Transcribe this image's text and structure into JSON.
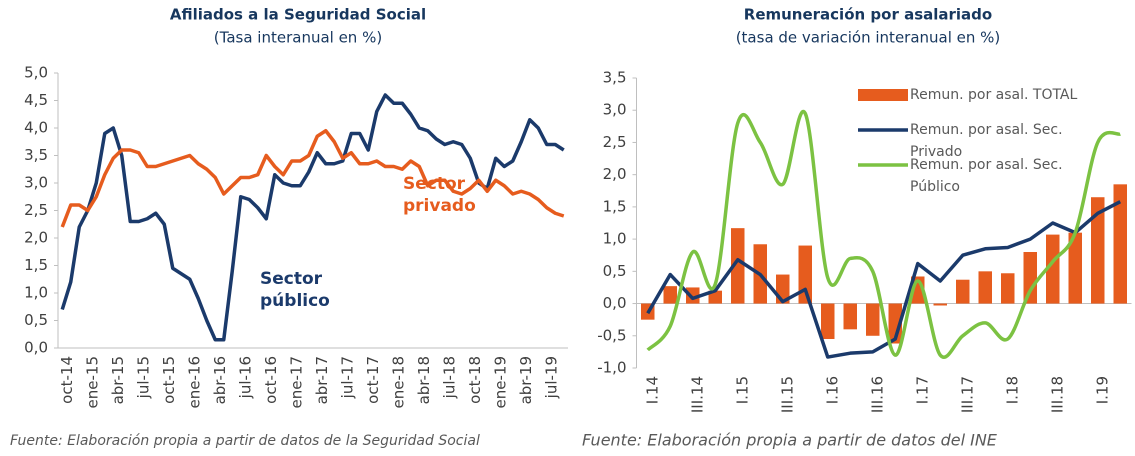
{
  "chart_data": [
    {
      "type": "line",
      "title": "Afiliados a la Seguridad Social",
      "subtitle": "(Tasa interanual en %)",
      "source": "Fuente: Elaboración propia a partir de datos de la Seguridad Social",
      "legend": false,
      "categories": [
        "oct-14",
        null,
        null,
        "ene-15",
        null,
        null,
        "abr-15",
        null,
        null,
        "jul-15",
        null,
        null,
        "oct-15",
        null,
        null,
        "ene-16",
        null,
        null,
        "abr-16",
        null,
        null,
        "jul-16",
        null,
        null,
        "oct-16",
        null,
        null,
        "ene-17",
        null,
        null,
        "abr-17",
        null,
        null,
        "jul-17",
        null,
        null,
        "oct-17",
        null,
        null,
        "ene-18",
        null,
        null,
        "abr-18",
        null,
        null,
        "jul-18",
        null,
        null,
        "oct-18",
        null,
        null,
        "ene-19",
        null,
        null,
        "abr-19",
        null,
        null,
        "jul-19",
        null,
        null
      ],
      "series": [
        {
          "name": "Sector público",
          "color": "#1b3a6b",
          "values": [
            0.7,
            1.2,
            2.2,
            2.5,
            3.0,
            3.9,
            4.0,
            3.5,
            2.3,
            2.3,
            2.35,
            2.45,
            2.25,
            1.45,
            1.35,
            1.25,
            0.9,
            0.5,
            0.15,
            0.15,
            1.4,
            2.75,
            2.7,
            2.55,
            2.35,
            3.15,
            3.0,
            2.95,
            2.95,
            3.2,
            3.55,
            3.35,
            3.35,
            3.4,
            3.9,
            3.9,
            3.6,
            4.3,
            4.6,
            4.45,
            4.45,
            4.25,
            4.0,
            3.95,
            3.8,
            3.7,
            3.75,
            3.7,
            3.45,
            3.0,
            2.9,
            3.45,
            3.3,
            3.4,
            3.75,
            4.15,
            4.0,
            3.7,
            3.7,
            3.6
          ]
        },
        {
          "name": "Sector privado",
          "color": "#e65c1e",
          "values": [
            2.2,
            2.6,
            2.6,
            2.5,
            2.75,
            3.15,
            3.45,
            3.6,
            3.6,
            3.55,
            3.3,
            3.3,
            3.35,
            3.4,
            3.45,
            3.5,
            3.35,
            3.25,
            3.1,
            2.8,
            2.95,
            3.1,
            3.1,
            3.15,
            3.5,
            3.3,
            3.15,
            3.4,
            3.4,
            3.5,
            3.85,
            3.95,
            3.75,
            3.45,
            3.55,
            3.35,
            3.35,
            3.4,
            3.3,
            3.3,
            3.25,
            3.4,
            3.3,
            2.95,
            3.05,
            3.05,
            2.85,
            2.8,
            2.9,
            3.05,
            2.85,
            3.05,
            2.95,
            2.8,
            2.85,
            2.8,
            2.7,
            2.55,
            2.45,
            2.4
          ]
        }
      ],
      "ylim": [
        0,
        5
      ],
      "yticks": [
        {
          "value": 0,
          "label": "0,0"
        },
        {
          "value": 0.5,
          "label": "0,5"
        },
        {
          "value": 1,
          "label": "1,0"
        },
        {
          "value": 1.5,
          "label": "1,5"
        },
        {
          "value": 2,
          "label": "2,0"
        },
        {
          "value": 2.5,
          "label": "2,5"
        },
        {
          "value": 3,
          "label": "3,0"
        },
        {
          "value": 3.5,
          "label": "3,5"
        },
        {
          "value": 4,
          "label": "4,0"
        },
        {
          "value": 4.5,
          "label": "4,5"
        },
        {
          "value": 5,
          "label": "5,0"
        }
      ]
    },
    {
      "type": "bar",
      "title": "Remuneración por asalariado",
      "subtitle": "(tasa de variación interanual en %)",
      "source": "Fuente:  Elaboración propia a partir de datos del INE",
      "legend": "upper right",
      "categories": [
        "I.14",
        null,
        "III.14",
        null,
        "I.15",
        null,
        "III.15",
        null,
        "I.16",
        null,
        "III.16",
        null,
        "I.17",
        null,
        "III.17",
        null,
        "I.18",
        null,
        "III.18",
        null,
        "I.19",
        null
      ],
      "series": [
        {
          "name": "Remun. por asal. TOTAL",
          "type": "bar",
          "color": "#e65c1e",
          "values": [
            -0.25,
            0.27,
            0.25,
            0.2,
            1.17,
            0.92,
            0.45,
            0.9,
            -0.55,
            -0.4,
            -0.5,
            -0.62,
            0.42,
            -0.03,
            0.37,
            0.5,
            0.47,
            0.8,
            1.07,
            1.1,
            1.65,
            1.85
          ]
        },
        {
          "name": "Remun. por asal. Sec. Privado",
          "type": "line",
          "color": "#1b3a6b",
          "values": [
            -0.15,
            0.45,
            0.08,
            0.2,
            0.68,
            0.45,
            0.03,
            0.22,
            -0.83,
            -0.77,
            -0.75,
            -0.55,
            0.62,
            0.35,
            0.75,
            0.85,
            0.87,
            1.0,
            1.25,
            1.1,
            1.4,
            1.58
          ]
        },
        {
          "name": "Remun. por asal. Sec. Público",
          "type": "line",
          "smooth": true,
          "color": "#7cc242",
          "values": [
            -0.72,
            -0.35,
            0.8,
            0.3,
            2.8,
            2.5,
            1.85,
            2.95,
            0.4,
            0.7,
            0.5,
            -0.8,
            0.35,
            -0.8,
            -0.5,
            -0.3,
            -0.55,
            0.2,
            0.65,
            1.1,
            2.5,
            2.63
          ]
        }
      ],
      "ylim": [
        -1,
        3.5
      ],
      "yticks": [
        {
          "value": -1,
          "label": "-1,0"
        },
        {
          "value": -0.5,
          "label": "-0,5"
        },
        {
          "value": 0,
          "label": "0,0"
        },
        {
          "value": 0.5,
          "label": "0,5"
        },
        {
          "value": 1,
          "label": "1,0"
        },
        {
          "value": 1.5,
          "label": "1,5"
        },
        {
          "value": 2,
          "label": "2,0"
        },
        {
          "value": 2.5,
          "label": "2,5"
        },
        {
          "value": 3,
          "label": "3,0"
        },
        {
          "value": 3.5,
          "label": "3,5"
        }
      ]
    }
  ]
}
